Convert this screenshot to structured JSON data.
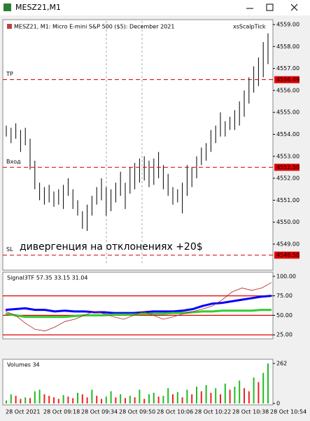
{
  "window": {
    "title": "MESZ21,M1"
  },
  "time_labels": [
    "28 Oct 2021",
    "28 Oct 09:18",
    "28 Oct 09:34",
    "28 Oct 09:50",
    "28 Oct 10:06",
    "28 Oct 10:22",
    "28 Oct 10:38",
    "28 Oct 10:54"
  ],
  "chart_data": [
    {
      "type": "ohlc",
      "title": "MESZ21, M1:  Micro E-mini S&P 500 ($5): December 2021",
      "indicator": "xsScalpTick",
      "color": "#000000",
      "highs": [
        4554.4,
        4554.3,
        4554.5,
        4554.2,
        4554.3,
        4553.8,
        4552.8,
        4551.8,
        4551.6,
        4551.7,
        4551.4,
        4551.5,
        4551.7,
        4552.0,
        4551.5,
        4551.0,
        4550.5,
        4550.8,
        4551.2,
        4551.6,
        4552.0,
        4551.6,
        4551.5,
        4551.8,
        4552.3,
        4551.8,
        4552.5,
        4552.7,
        4552.9,
        4553.0,
        4552.8,
        4552.9,
        4553.2,
        4552.6,
        4552.2,
        4551.6,
        4551.5,
        4551.8,
        4552.6,
        4552.5,
        4553.0,
        4553.4,
        4553.6,
        4554.2,
        4554.4,
        4555.0,
        4554.6,
        4554.8,
        4555.1,
        4555.5,
        4556.0,
        4556.6,
        4557.1,
        4557.5,
        4558.2,
        4558.6
      ],
      "lows": [
        4553.9,
        4553.6,
        4553.8,
        4553.2,
        4553.5,
        4552.4,
        4551.5,
        4551.0,
        4550.8,
        4550.9,
        4550.7,
        4550.8,
        4550.6,
        4551.2,
        4550.6,
        4550.3,
        4549.7,
        4549.6,
        4550.3,
        4550.8,
        4551.0,
        4550.3,
        4550.5,
        4550.9,
        4551.2,
        4550.6,
        4551.3,
        4551.5,
        4551.8,
        4551.9,
        4551.6,
        4551.7,
        4552.0,
        4551.5,
        4551.2,
        4550.8,
        4550.9,
        4550.4,
        4551.2,
        4551.6,
        4552.0,
        4552.6,
        4552.8,
        4553.2,
        4553.6,
        4553.9,
        4553.9,
        4554.2,
        4554.2,
        4554.4,
        4554.8,
        4555.4,
        4555.9,
        4556.2,
        4556.6,
        4557.2
      ],
      "ylim": [
        4547.88,
        4559.16
      ],
      "yticks": [
        {
          "value": 4559,
          "label": "4559.00"
        },
        {
          "value": 4558,
          "label": "4558.00"
        },
        {
          "value": 4557,
          "label": "4557.00"
        },
        {
          "value": 4556,
          "label": "4556.00"
        },
        {
          "value": 4555,
          "label": "4555.00"
        },
        {
          "value": 4554,
          "label": "4554.00"
        },
        {
          "value": 4553,
          "label": "4553.00"
        },
        {
          "value": 4552,
          "label": "4552.00"
        },
        {
          "value": 4551,
          "label": "4551.00"
        },
        {
          "value": 4550,
          "label": "4550.00"
        },
        {
          "value": 4549,
          "label": "4549.00"
        }
      ],
      "levels": [
        {
          "name": "TP",
          "value": 4556.49,
          "label": "4556.49"
        },
        {
          "name": "Вход",
          "value": 4552.5,
          "label": "4552.50"
        },
        {
          "name": "SL",
          "value": 4548.5,
          "label": "4548.50"
        }
      ],
      "level_color": "#e00000",
      "annotation": "дивергенция на отклонениях +20$"
    },
    {
      "type": "line",
      "title": "Signal3TF 57.35 33.15 31.04",
      "series": [
        {
          "color": "#0000ff",
          "values": [
            57,
            58,
            59,
            57,
            57,
            55,
            56,
            55,
            55,
            54,
            54,
            53,
            53,
            53,
            54,
            55,
            55,
            55,
            56,
            58,
            62,
            65,
            66,
            68,
            70,
            72,
            74,
            75
          ]
        },
        {
          "color": "#33cc33",
          "values": [
            52,
            50,
            48,
            48,
            48,
            48,
            48,
            49,
            50,
            50,
            50,
            51,
            51,
            51,
            52,
            52,
            52,
            53,
            53,
            54,
            55,
            55,
            56,
            56,
            56,
            56,
            57,
            57
          ]
        },
        {
          "color": "#b22222",
          "values": [
            55,
            50,
            40,
            32,
            30,
            35,
            42,
            45,
            50,
            55,
            52,
            48,
            45,
            50,
            55,
            50,
            45,
            48,
            52,
            55,
            58,
            62,
            70,
            80,
            85,
            82,
            85,
            92
          ]
        }
      ],
      "ylim": [
        20.7,
        104.3
      ],
      "yticks": [
        {
          "value": 100,
          "label": "100.00"
        },
        {
          "value": 75,
          "label": "75.00"
        },
        {
          "value": 50,
          "label": "50.00"
        },
        {
          "value": 25,
          "label": "25.00"
        }
      ],
      "level_lines": [
        75,
        50,
        25
      ],
      "level_color": "#e00000"
    },
    {
      "type": "bar",
      "title": "Volumes 34",
      "values": [
        20,
        60,
        50,
        30,
        40,
        35,
        80,
        90,
        60,
        50,
        40,
        30,
        55,
        45,
        35,
        70,
        60,
        40,
        90,
        50,
        30,
        45,
        80,
        40,
        60,
        35,
        50,
        40,
        90,
        30,
        60,
        70,
        45,
        50,
        100,
        60,
        75,
        40,
        90,
        60,
        110,
        80,
        120,
        70,
        100,
        60,
        130,
        90,
        110,
        150,
        100,
        80,
        170,
        140,
        200,
        262
      ],
      "up_color": "#22bb22",
      "down_color": "#ee2222",
      "ylim": [
        0,
        262
      ],
      "yticks": [
        0,
        262
      ]
    }
  ]
}
